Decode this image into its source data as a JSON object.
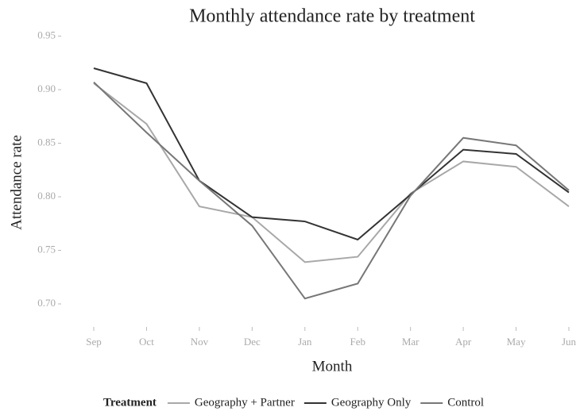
{
  "chart_data": {
    "type": "line",
    "title": "Monthly attendance rate by treatment",
    "xlabel": "Month",
    "ylabel": "Attendance rate",
    "legend_title": "Treatment",
    "legend": "bottom",
    "categories": [
      "Sep",
      "Oct",
      "Nov",
      "Dec",
      "Jan",
      "Feb",
      "Mar",
      "Apr",
      "May",
      "Jun"
    ],
    "series": [
      {
        "name": "Geography + Partner",
        "color": "#a8a8a8",
        "values": [
          0.906,
          0.868,
          0.791,
          0.781,
          0.739,
          0.744,
          0.803,
          0.833,
          0.828,
          0.791
        ]
      },
      {
        "name": "Geography Only",
        "color": "#333333",
        "values": [
          0.92,
          0.906,
          0.815,
          0.781,
          0.777,
          0.76,
          0.802,
          0.844,
          0.84,
          0.804
        ]
      },
      {
        "name": "Control",
        "color": "#777777",
        "values": [
          0.907,
          0.86,
          0.815,
          0.773,
          0.705,
          0.719,
          0.801,
          0.855,
          0.848,
          0.806
        ]
      }
    ],
    "ylim": [
      0.68,
      0.96
    ],
    "yticks": [
      {
        "value": 0.7,
        "label": "0.70"
      },
      0.75,
      {
        "value": 0.8,
        "label": "0.80"
      },
      0.85,
      {
        "value": 0.9,
        "label": "0.90"
      },
      0.95
    ],
    "grid": false
  }
}
